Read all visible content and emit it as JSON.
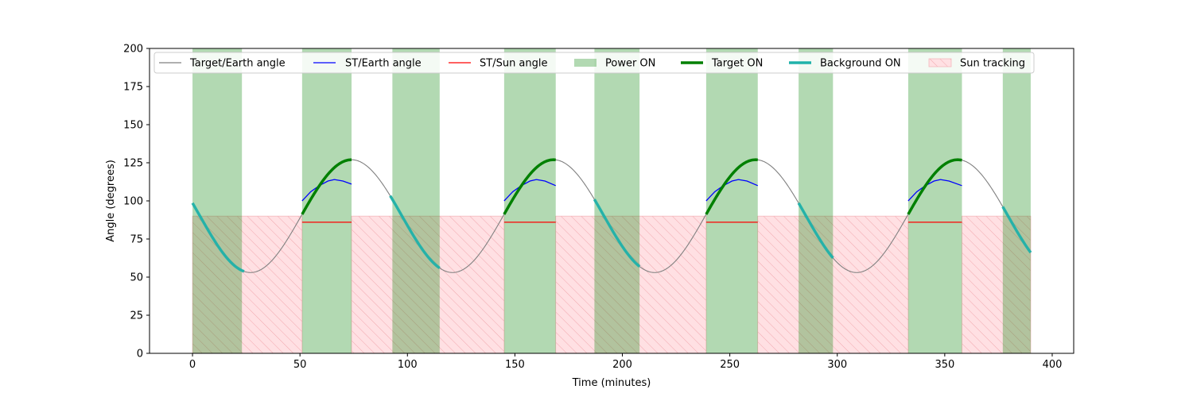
{
  "chart_data": {
    "type": "line",
    "xlabel": "Time (minutes)",
    "ylabel": "Angle (degrees)",
    "xlim": [
      -20,
      410
    ],
    "ylim": [
      0,
      200
    ],
    "xticks": [
      0,
      50,
      100,
      150,
      200,
      250,
      300,
      350,
      400
    ],
    "yticks": [
      0,
      25,
      50,
      75,
      100,
      125,
      150,
      175,
      200
    ],
    "legend_position": "top",
    "colors": {
      "target_earth": "#808080",
      "st_earth": "#0000ff",
      "st_sun": "#ff0000",
      "power_on": "#b3d9b3",
      "target_on": "#008000",
      "background_on": "#20b2aa",
      "sun_tracking": "#ffe0e3"
    },
    "target_earth_model": {
      "period": 94,
      "mean": 90,
      "amplitude": 37,
      "peak_times": [
        74,
        168,
        262,
        356
      ]
    },
    "legend": [
      {
        "key": "target_earth",
        "label": "Target/Earth angle",
        "kind": "line"
      },
      {
        "key": "st_earth",
        "label": "ST/Earth angle",
        "kind": "line"
      },
      {
        "key": "st_sun",
        "label": "ST/Sun angle",
        "kind": "line"
      },
      {
        "key": "power_on",
        "label": "Power ON",
        "kind": "patch"
      },
      {
        "key": "target_on",
        "label": "Target ON",
        "kind": "thickline"
      },
      {
        "key": "background_on",
        "label": "Background ON",
        "kind": "thickline"
      },
      {
        "key": "sun_tracking",
        "label": "Sun tracking",
        "kind": "hatch"
      }
    ],
    "power_on_intervals": [
      [
        0,
        23
      ],
      [
        51,
        74
      ],
      [
        93,
        115
      ],
      [
        145,
        169
      ],
      [
        187,
        208
      ],
      [
        239,
        263
      ],
      [
        282,
        298
      ],
      [
        333,
        358
      ],
      [
        377,
        390
      ]
    ],
    "sun_tracking_intervals": [
      [
        0,
        51
      ],
      [
        74,
        145
      ],
      [
        169,
        239
      ],
      [
        263,
        333
      ],
      [
        358,
        390
      ]
    ],
    "sun_tracking_max_angle": 90,
    "target_on_intervals": [
      [
        51,
        74
      ],
      [
        145,
        169
      ],
      [
        239,
        263
      ],
      [
        333,
        358
      ]
    ],
    "background_on_intervals": [
      [
        0,
        24
      ],
      [
        92,
        115
      ],
      [
        187,
        208
      ],
      [
        282,
        298
      ],
      [
        377,
        390
      ]
    ],
    "st_earth_series": [
      {
        "x": [
          51,
          55,
          59,
          63,
          66,
          70,
          74
        ],
        "y": [
          100,
          106,
          110,
          113,
          114,
          113,
          111
        ]
      },
      {
        "x": [
          145,
          149,
          153,
          157,
          160,
          164,
          169
        ],
        "y": [
          100,
          106,
          110,
          113,
          114,
          113,
          110
        ]
      },
      {
        "x": [
          239,
          243,
          247,
          251,
          254,
          258,
          263
        ],
        "y": [
          100,
          106,
          110,
          113,
          114,
          113,
          110
        ]
      },
      {
        "x": [
          333,
          337,
          341,
          345,
          348,
          352,
          358
        ],
        "y": [
          100,
          106,
          110,
          113,
          114,
          113,
          110
        ]
      }
    ],
    "st_sun_series": [
      {
        "x": [
          51,
          74
        ],
        "y": [
          86,
          86
        ]
      },
      {
        "x": [
          145,
          169
        ],
        "y": [
          86,
          86
        ]
      },
      {
        "x": [
          239,
          263
        ],
        "y": [
          86,
          86
        ]
      },
      {
        "x": [
          333,
          358
        ],
        "y": [
          86,
          86
        ]
      }
    ]
  }
}
